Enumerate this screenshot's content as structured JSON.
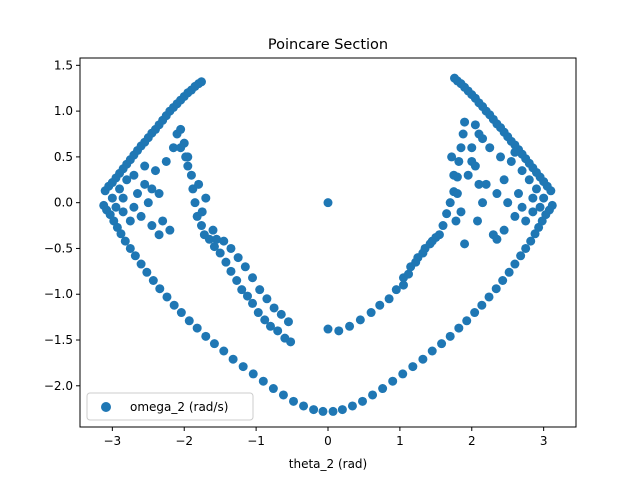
{
  "chart_data": {
    "type": "scatter",
    "title": "Poincare Section",
    "xlabel": "theta_2 (rad)",
    "ylabel": "",
    "xlim": [
      -3.45,
      3.45
    ],
    "ylim": [
      -2.45,
      1.58
    ],
    "xticks": [
      -3,
      -2,
      -1,
      0,
      1,
      2,
      3
    ],
    "xtick_labels": [
      "−3",
      "−2",
      "−1",
      "0",
      "1",
      "2",
      "3"
    ],
    "yticks": [
      -2.0,
      -1.5,
      -1.0,
      -0.5,
      0.0,
      0.5,
      1.0,
      1.5
    ],
    "ytick_labels": [
      "−2.0",
      "−1.5",
      "−1.0",
      "−0.5",
      "0.0",
      "0.5",
      "1.0",
      "1.5"
    ],
    "grid": false,
    "legend_position": "lower-left",
    "series": [
      {
        "name": "omega_2 (rad/s)",
        "color": "#1f77b4",
        "points": [
          [
            0.0,
            0.0
          ],
          [
            -3.1,
            0.13
          ],
          [
            -3.05,
            0.18
          ],
          [
            -3.0,
            0.22
          ],
          [
            -2.95,
            0.27
          ],
          [
            -2.9,
            0.32
          ],
          [
            -2.85,
            0.37
          ],
          [
            -2.8,
            0.42
          ],
          [
            -2.75,
            0.47
          ],
          [
            -2.7,
            0.52
          ],
          [
            -2.65,
            0.57
          ],
          [
            -2.6,
            0.62
          ],
          [
            -2.55,
            0.66
          ],
          [
            -2.5,
            0.71
          ],
          [
            -2.45,
            0.76
          ],
          [
            -2.4,
            0.8
          ],
          [
            -2.35,
            0.85
          ],
          [
            -2.3,
            0.9
          ],
          [
            -2.25,
            0.95
          ],
          [
            -2.2,
            1.0
          ],
          [
            -2.15,
            1.04
          ],
          [
            -2.1,
            1.08
          ],
          [
            -2.05,
            1.12
          ],
          [
            -2.0,
            1.16
          ],
          [
            -1.95,
            1.2
          ],
          [
            -1.9,
            1.23
          ],
          [
            -1.85,
            1.27
          ],
          [
            -1.8,
            1.3
          ],
          [
            -1.76,
            1.32
          ],
          [
            -3.12,
            -0.03
          ],
          [
            -3.08,
            -0.08
          ],
          [
            -3.03,
            -0.13
          ],
          [
            -2.98,
            -0.2
          ],
          [
            -2.93,
            -0.27
          ],
          [
            -2.88,
            -0.34
          ],
          [
            -2.82,
            -0.42
          ],
          [
            -2.75,
            -0.5
          ],
          [
            -2.68,
            -0.58
          ],
          [
            -2.6,
            -0.67
          ],
          [
            -2.52,
            -0.76
          ],
          [
            -2.43,
            -0.85
          ],
          [
            -2.34,
            -0.94
          ],
          [
            -2.24,
            -1.03
          ],
          [
            -2.14,
            -1.12
          ],
          [
            -2.04,
            -1.2
          ],
          [
            -1.93,
            -1.29
          ],
          [
            -1.82,
            -1.37
          ],
          [
            -1.7,
            -1.46
          ],
          [
            -1.58,
            -1.54
          ],
          [
            -1.45,
            -1.62
          ],
          [
            -1.32,
            -1.71
          ],
          [
            -1.18,
            -1.79
          ],
          [
            -1.04,
            -1.87
          ],
          [
            -0.9,
            -1.95
          ],
          [
            -0.76,
            -2.03
          ],
          [
            -0.62,
            -2.1
          ],
          [
            -0.48,
            -2.17
          ],
          [
            -0.34,
            -2.22
          ],
          [
            -0.2,
            -2.26
          ],
          [
            -0.07,
            -2.28
          ],
          [
            0.07,
            -2.28
          ],
          [
            0.2,
            -2.26
          ],
          [
            0.34,
            -2.22
          ],
          [
            0.48,
            -2.17
          ],
          [
            0.62,
            -2.1
          ],
          [
            0.76,
            -2.03
          ],
          [
            0.9,
            -1.95
          ],
          [
            1.04,
            -1.87
          ],
          [
            1.18,
            -1.79
          ],
          [
            1.32,
            -1.71
          ],
          [
            1.45,
            -1.62
          ],
          [
            1.58,
            -1.54
          ],
          [
            1.7,
            -1.46
          ],
          [
            1.82,
            -1.37
          ],
          [
            1.93,
            -1.29
          ],
          [
            2.04,
            -1.2
          ],
          [
            2.14,
            -1.12
          ],
          [
            2.24,
            -1.03
          ],
          [
            2.34,
            -0.94
          ],
          [
            2.43,
            -0.85
          ],
          [
            2.52,
            -0.76
          ],
          [
            2.6,
            -0.67
          ],
          [
            2.68,
            -0.58
          ],
          [
            2.75,
            -0.5
          ],
          [
            2.82,
            -0.42
          ],
          [
            2.88,
            -0.34
          ],
          [
            2.93,
            -0.27
          ],
          [
            2.98,
            -0.2
          ],
          [
            3.03,
            -0.13
          ],
          [
            3.08,
            -0.08
          ],
          [
            3.12,
            -0.03
          ],
          [
            3.1,
            0.13
          ],
          [
            3.05,
            0.18
          ],
          [
            3.0,
            0.23
          ],
          [
            2.95,
            0.28
          ],
          [
            2.9,
            0.33
          ],
          [
            2.85,
            0.38
          ],
          [
            2.8,
            0.43
          ],
          [
            2.75,
            0.48
          ],
          [
            2.7,
            0.53
          ],
          [
            2.65,
            0.58
          ],
          [
            2.6,
            0.63
          ],
          [
            2.55,
            0.67
          ],
          [
            2.5,
            0.72
          ],
          [
            2.45,
            0.77
          ],
          [
            2.4,
            0.82
          ],
          [
            2.35,
            0.86
          ],
          [
            2.3,
            0.91
          ],
          [
            2.25,
            0.96
          ],
          [
            2.2,
            1.0
          ],
          [
            2.15,
            1.05
          ],
          [
            2.1,
            1.09
          ],
          [
            2.05,
            1.14
          ],
          [
            2.0,
            1.18
          ],
          [
            1.95,
            1.22
          ],
          [
            1.9,
            1.26
          ],
          [
            1.85,
            1.3
          ],
          [
            1.8,
            1.33
          ],
          [
            1.76,
            1.36
          ],
          [
            -3.0,
            0.05
          ],
          [
            -2.95,
            -0.05
          ],
          [
            -2.9,
            0.15
          ],
          [
            -2.85,
            -0.1
          ],
          [
            -2.8,
            0.25
          ],
          [
            -2.75,
            -0.2
          ],
          [
            -2.7,
            0.3
          ],
          [
            -2.65,
            0.1
          ],
          [
            -2.6,
            -0.15
          ],
          [
            -2.55,
            0.2
          ],
          [
            -2.5,
            0.0
          ],
          [
            -2.45,
            -0.25
          ],
          [
            -2.4,
            0.35
          ],
          [
            -2.35,
            0.1
          ],
          [
            -2.3,
            -0.2
          ],
          [
            -2.25,
            0.45
          ],
          [
            -2.2,
            -0.3
          ],
          [
            -2.15,
            0.6
          ],
          [
            -2.1,
            0.75
          ],
          [
            -2.05,
            0.8
          ],
          [
            -2.0,
            0.65
          ],
          [
            -1.95,
            0.5
          ],
          [
            -2.85,
            0.05
          ],
          [
            -2.7,
            -0.05
          ],
          [
            -2.55,
            0.4
          ],
          [
            -2.45,
            0.15
          ],
          [
            -2.35,
            -0.35
          ],
          [
            3.0,
            0.05
          ],
          [
            2.95,
            -0.05
          ],
          [
            2.9,
            0.15
          ],
          [
            2.85,
            -0.1
          ],
          [
            2.8,
            0.25
          ],
          [
            2.75,
            -0.2
          ],
          [
            2.7,
            0.35
          ],
          [
            2.65,
            0.1
          ],
          [
            2.6,
            -0.15
          ],
          [
            2.55,
            0.45
          ],
          [
            2.5,
            0.0
          ],
          [
            2.45,
            -0.3
          ],
          [
            2.4,
            0.5
          ],
          [
            2.35,
            0.1
          ],
          [
            2.3,
            -0.35
          ],
          [
            2.25,
            0.6
          ],
          [
            2.2,
            0.2
          ],
          [
            2.15,
            0.7
          ],
          [
            2.1,
            0.75
          ],
          [
            2.05,
            0.85
          ],
          [
            2.0,
            0.45
          ],
          [
            1.95,
            0.3
          ],
          [
            2.85,
            0.05
          ],
          [
            2.7,
            -0.05
          ],
          [
            2.6,
            0.55
          ],
          [
            2.45,
            0.25
          ],
          [
            2.35,
            -0.4
          ],
          [
            -2.05,
            0.6
          ],
          [
            -1.98,
            0.5
          ],
          [
            -1.95,
            0.4
          ],
          [
            -1.9,
            0.3
          ],
          [
            -1.88,
            0.15
          ],
          [
            -1.85,
            0.0
          ],
          [
            -1.82,
            -0.15
          ],
          [
            -1.76,
            -0.25
          ],
          [
            -1.72,
            -0.35
          ],
          [
            -1.65,
            -0.4
          ],
          [
            -1.58,
            -0.48
          ],
          [
            -1.5,
            -0.55
          ],
          [
            -1.42,
            -0.65
          ],
          [
            -1.35,
            -0.75
          ],
          [
            -1.27,
            -0.85
          ],
          [
            -1.2,
            -0.95
          ],
          [
            -1.12,
            -1.02
          ],
          [
            -1.05,
            -1.1
          ],
          [
            -0.97,
            -1.2
          ],
          [
            -0.88,
            -1.28
          ],
          [
            -0.8,
            -1.35
          ],
          [
            -0.7,
            -1.4
          ],
          [
            -0.6,
            -1.48
          ],
          [
            -0.52,
            -1.52
          ],
          [
            -1.6,
            -0.3
          ],
          [
            -1.55,
            -0.4
          ],
          [
            -1.45,
            -0.42
          ],
          [
            -1.35,
            -0.5
          ],
          [
            -1.25,
            -0.6
          ],
          [
            -1.15,
            -0.7
          ],
          [
            -1.05,
            -0.82
          ],
          [
            -0.95,
            -0.95
          ],
          [
            -0.85,
            -1.05
          ],
          [
            -0.75,
            -1.15
          ],
          [
            -0.65,
            -1.22
          ],
          [
            -0.55,
            -1.3
          ],
          [
            -1.75,
            -0.1
          ],
          [
            -1.7,
            0.05
          ],
          [
            -1.8,
            0.2
          ],
          [
            0.0,
            -1.38
          ],
          [
            0.15,
            -1.4
          ],
          [
            0.3,
            -1.35
          ],
          [
            0.45,
            -1.28
          ],
          [
            0.6,
            -1.2
          ],
          [
            0.72,
            -1.12
          ],
          [
            0.85,
            -1.05
          ],
          [
            0.95,
            -0.95
          ],
          [
            1.05,
            -0.82
          ],
          [
            1.15,
            -0.7
          ],
          [
            1.25,
            -0.6
          ],
          [
            1.35,
            -0.5
          ],
          [
            1.45,
            -0.42
          ],
          [
            1.55,
            -0.35
          ],
          [
            1.6,
            -0.25
          ],
          [
            1.65,
            -0.12
          ],
          [
            1.7,
            0.0
          ],
          [
            1.75,
            0.12
          ],
          [
            1.8,
            0.28
          ],
          [
            1.82,
            0.45
          ],
          [
            1.85,
            0.6
          ],
          [
            1.88,
            0.75
          ],
          [
            1.9,
            0.88
          ],
          [
            1.05,
            -0.9
          ],
          [
            1.12,
            -0.78
          ],
          [
            1.22,
            -0.65
          ],
          [
            1.32,
            -0.55
          ],
          [
            1.42,
            -0.45
          ],
          [
            1.5,
            -0.38
          ],
          [
            1.78,
            -0.2
          ],
          [
            1.85,
            -0.1
          ],
          [
            1.8,
            0.1
          ],
          [
            1.75,
            0.3
          ],
          [
            1.72,
            0.5
          ],
          [
            2.0,
            0.6
          ],
          [
            2.05,
            0.4
          ],
          [
            2.1,
            0.2
          ],
          [
            2.15,
            0.0
          ],
          [
            2.08,
            -0.2
          ],
          [
            1.9,
            -0.45
          ]
        ]
      }
    ]
  }
}
